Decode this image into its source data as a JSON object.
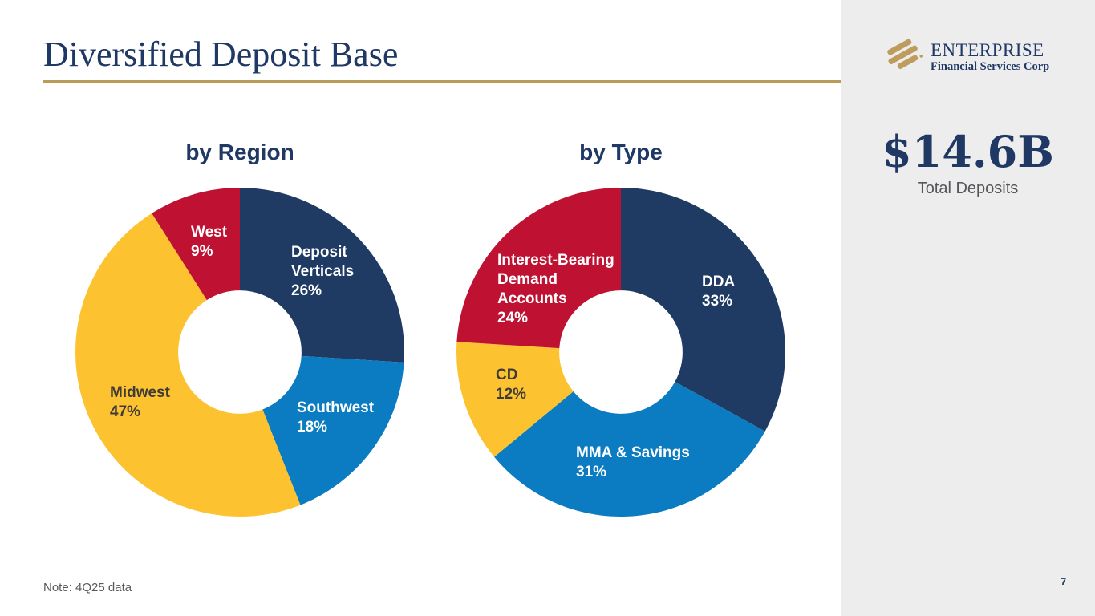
{
  "slide": {
    "title": "Diversified Deposit Base",
    "note": "Note: 4Q25 data",
    "page_number": "7"
  },
  "logo": {
    "name": "ENTERPRISE",
    "subtitle": "Financial Services Corp",
    "icon": "enterprise-swoosh-icon",
    "icon_color": "#BD9C5E"
  },
  "sidebar": {
    "total_value": "$14.6B",
    "total_label": "Total Deposits"
  },
  "colors": {
    "navy": "#1F3B63",
    "light_blue": "#0B7CC1",
    "yellow": "#FDC230",
    "red": "#BF1233",
    "gold_rule": "#BB9B58",
    "sidebar_bg": "#EDEDED",
    "title_navy": "#1F3864"
  },
  "chart_data": [
    {
      "type": "pie",
      "subtype": "donut",
      "title": "by Region",
      "categories": [
        "Deposit Verticals",
        "Southwest",
        "Midwest",
        "West"
      ],
      "values": [
        26,
        18,
        47,
        9
      ],
      "unit": "%",
      "colors": [
        "#1F3B63",
        "#0B7CC1",
        "#FDC230",
        "#BF1233"
      ],
      "start_angle_deg": 0,
      "direction": "clockwise",
      "inner_radius_ratio": 0.375,
      "labels": [
        {
          "category": "Deposit Verticals",
          "text": "Deposit\nVerticals\n26%"
        },
        {
          "category": "Southwest",
          "text": "Southwest\n18%"
        },
        {
          "category": "Midwest",
          "text": "Midwest\n47%"
        },
        {
          "category": "West",
          "text": "West\n9%"
        }
      ]
    },
    {
      "type": "pie",
      "subtype": "donut",
      "title": "by Type",
      "categories": [
        "DDA",
        "MMA & Savings",
        "CD",
        "Interest-Bearing Demand Accounts"
      ],
      "values": [
        33,
        31,
        12,
        24
      ],
      "unit": "%",
      "colors": [
        "#1F3B63",
        "#0B7CC1",
        "#FDC230",
        "#BF1233"
      ],
      "start_angle_deg": 0,
      "direction": "clockwise",
      "inner_radius_ratio": 0.375,
      "labels": [
        {
          "category": "DDA",
          "text": "DDA\n33%"
        },
        {
          "category": "MMA & Savings",
          "text": "MMA & Savings\n31%"
        },
        {
          "category": "CD",
          "text": "CD\n12%"
        },
        {
          "category": "Interest-Bearing Demand Accounts",
          "text": "Interest-Bearing\nDemand\nAccounts\n24%"
        }
      ]
    }
  ]
}
